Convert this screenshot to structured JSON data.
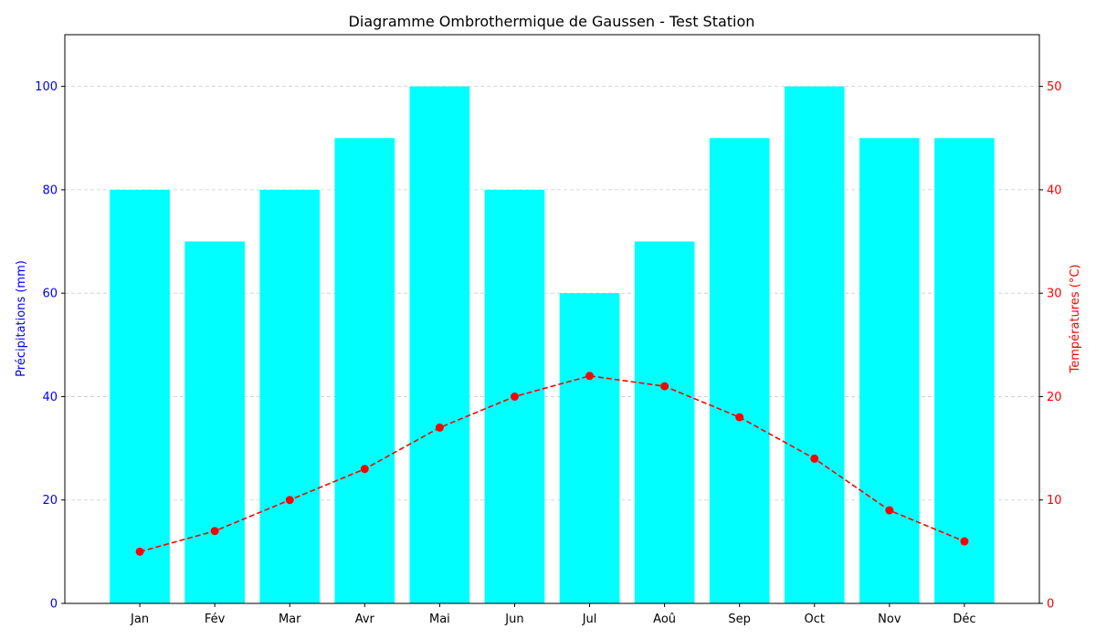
{
  "chart_data": {
    "type": "bar",
    "title": "Diagramme Ombrothermique de Gaussen - Test Station",
    "categories": [
      "Jan",
      "Fév",
      "Mar",
      "Avr",
      "Mai",
      "Jun",
      "Jul",
      "Aoû",
      "Sep",
      "Oct",
      "Nov",
      "Déc"
    ],
    "series": [
      {
        "name": "Précipitations",
        "type": "bar",
        "axis": "left",
        "values": [
          80,
          70,
          80,
          90,
          100,
          80,
          60,
          70,
          90,
          100,
          90,
          90
        ],
        "color": "#00ffff"
      },
      {
        "name": "Températures",
        "type": "line",
        "axis": "right",
        "values": [
          5,
          7,
          10,
          13,
          17,
          20,
          22,
          21,
          18,
          14,
          9,
          6
        ],
        "color": "#ff0000",
        "line_style": "dashed",
        "marker": "circle"
      }
    ],
    "y_left": {
      "label": "Précipitations (mm)",
      "ylim": [
        0,
        110
      ],
      "ticks": [
        0,
        20,
        40,
        60,
        80,
        100
      ],
      "color": "#0000ff"
    },
    "y_right": {
      "label": "Températures (°C)",
      "ylim": [
        0,
        55
      ],
      "ticks": [
        0,
        10,
        20,
        30,
        40,
        50
      ],
      "color": "#ff0000"
    },
    "grid": {
      "horizontal": true,
      "style": "dashed",
      "color": "#cccccc"
    }
  }
}
